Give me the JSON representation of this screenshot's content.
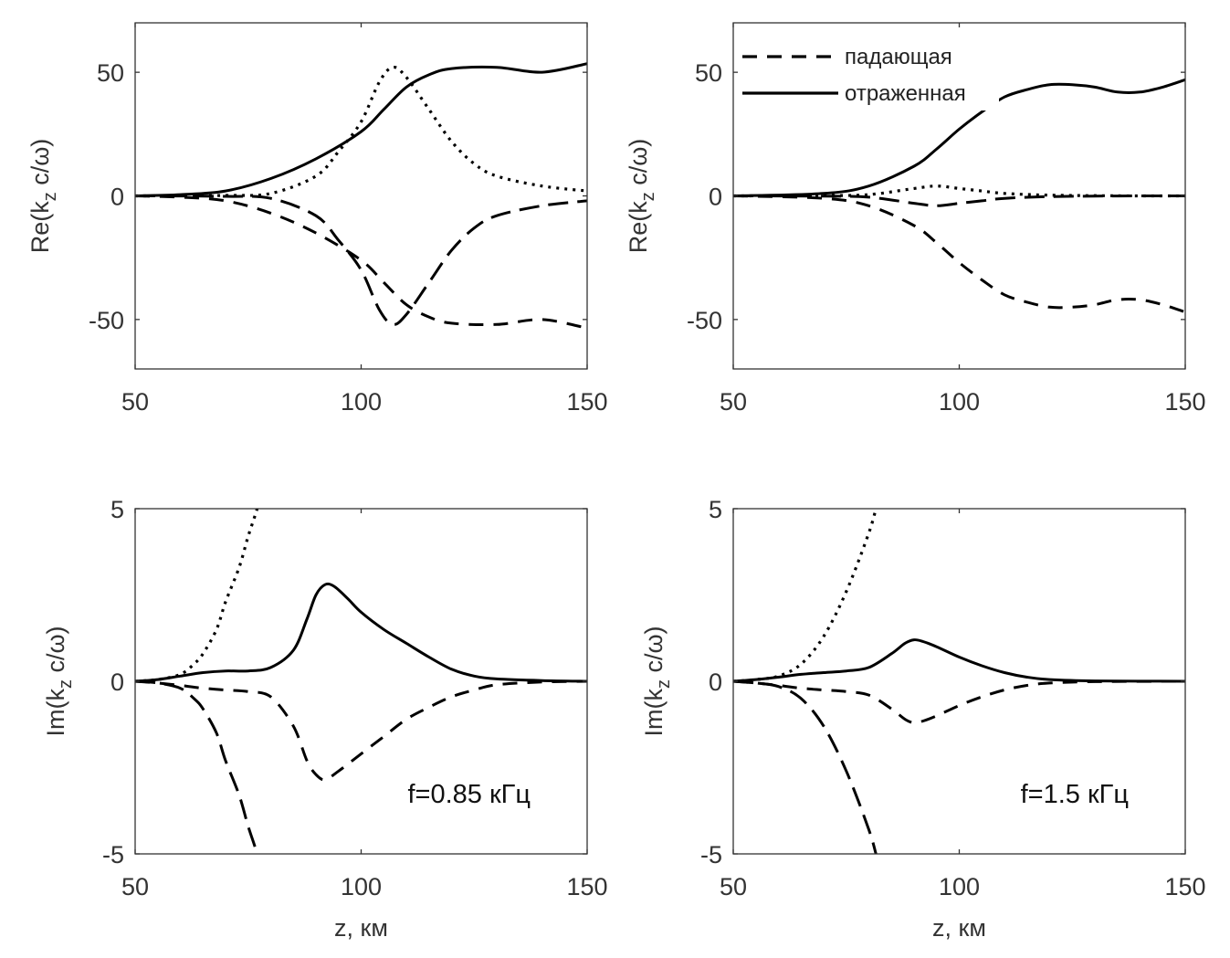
{
  "chart_data": [
    {
      "type": "line",
      "id": "re_085",
      "xlim": [
        50,
        150
      ],
      "ylim": [
        -70,
        70
      ],
      "xticks": [
        50,
        100,
        150
      ],
      "yticks": [
        -50,
        0,
        50
      ],
      "xlabel": "",
      "ylabel": {
        "pre": "Re(k",
        "sub": "z",
        "post": " c/ω)"
      },
      "annotation": "",
      "series": [
        {
          "name": "отраженная",
          "style": "solid",
          "x": [
            50,
            60,
            70,
            80,
            90,
            100,
            105,
            110,
            115,
            120,
            130,
            140,
            150
          ],
          "y": [
            0,
            0.5,
            2,
            7,
            15,
            26,
            35,
            44,
            49,
            51.5,
            52,
            50,
            53.5
          ]
        },
        {
          "name": "падающая",
          "style": "dashed",
          "x": [
            50,
            60,
            70,
            80,
            90,
            100,
            105,
            110,
            115,
            120,
            130,
            140,
            150
          ],
          "y": [
            0,
            -0.5,
            -2,
            -7,
            -15,
            -26,
            -35,
            -44,
            -49,
            -51.5,
            -52,
            -50,
            -53.5
          ]
        },
        {
          "name": "dotted",
          "style": "dotted",
          "x": [
            50,
            70,
            80,
            90,
            95,
            100,
            104,
            107,
            110,
            115,
            120,
            125,
            130,
            140,
            150
          ],
          "y": [
            0,
            0.2,
            1,
            8,
            18,
            30,
            46,
            52,
            48,
            35,
            22,
            13,
            8,
            4,
            2
          ]
        },
        {
          "name": "long-dash",
          "style": "longdash",
          "x": [
            50,
            70,
            80,
            90,
            95,
            100,
            104,
            107,
            110,
            115,
            120,
            125,
            130,
            140,
            150
          ],
          "y": [
            0,
            -0.2,
            -1,
            -8,
            -18,
            -30,
            -46,
            -52,
            -48,
            -35,
            -22,
            -13,
            -8,
            -4,
            -2
          ]
        }
      ]
    },
    {
      "type": "line",
      "id": "re_15",
      "xlim": [
        50,
        150
      ],
      "ylim": [
        -70,
        70
      ],
      "xticks": [
        50,
        100,
        150
      ],
      "yticks": [
        -50,
        0,
        50
      ],
      "xlabel": "",
      "ylabel": {
        "pre": "Re(k",
        "sub": "z",
        "post": " c/ω)"
      },
      "annotation": "",
      "legend": {
        "placement": "top-left",
        "entries": [
          {
            "label": "падающая",
            "style": "dashed"
          },
          {
            "label": "отраженная",
            "style": "solid"
          }
        ]
      },
      "series": [
        {
          "name": "отраженная",
          "style": "solid",
          "x": [
            50,
            70,
            80,
            90,
            95,
            100,
            105,
            110,
            115,
            120,
            125,
            130,
            135,
            140,
            145,
            150
          ],
          "y": [
            0,
            1,
            4,
            12,
            19,
            27,
            34,
            40,
            43,
            45,
            45,
            44,
            42,
            42,
            44,
            47
          ]
        },
        {
          "name": "падающая",
          "style": "dashed",
          "x": [
            50,
            70,
            80,
            90,
            95,
            100,
            105,
            110,
            115,
            120,
            125,
            130,
            135,
            140,
            145,
            150
          ],
          "y": [
            0,
            -1,
            -4,
            -12,
            -19,
            -27,
            -34,
            -40,
            -43,
            -45,
            -45,
            -44,
            -42,
            -42,
            -44,
            -47
          ]
        },
        {
          "name": "dotted",
          "style": "dotted",
          "x": [
            50,
            70,
            80,
            90,
            95,
            100,
            105,
            110,
            120,
            135,
            150
          ],
          "y": [
            0,
            0.1,
            0.5,
            3,
            4,
            3,
            2,
            1,
            0.3,
            0.05,
            0
          ]
        },
        {
          "name": "long-dash",
          "style": "longdash",
          "x": [
            50,
            70,
            80,
            90,
            95,
            100,
            105,
            110,
            120,
            135,
            150
          ],
          "y": [
            0,
            -0.1,
            -0.5,
            -3,
            -4,
            -3,
            -2,
            -1,
            -0.3,
            -0.05,
            0
          ]
        }
      ]
    },
    {
      "type": "line",
      "id": "im_085",
      "xlim": [
        50,
        150
      ],
      "ylim": [
        -5,
        5
      ],
      "xticks": [
        50,
        100,
        150
      ],
      "yticks": [
        -5,
        0,
        5
      ],
      "xlabel": "z, км",
      "ylabel": {
        "pre": "Im(k",
        "sub": "z",
        "post": " c/ω)"
      },
      "annotation": "f=0.85 кГц",
      "series": [
        {
          "name": "отраженная",
          "style": "solid",
          "x": [
            50,
            55,
            60,
            65,
            70,
            75,
            80,
            85,
            88,
            90,
            92,
            94,
            97,
            100,
            105,
            110,
            115,
            120,
            125,
            130,
            140,
            150
          ],
          "y": [
            0,
            0.05,
            0.15,
            0.25,
            0.3,
            0.3,
            0.4,
            0.9,
            1.8,
            2.5,
            2.8,
            2.75,
            2.4,
            2.0,
            1.5,
            1.1,
            0.7,
            0.35,
            0.15,
            0.07,
            0.02,
            0
          ]
        },
        {
          "name": "падающая",
          "style": "dashed",
          "x": [
            50,
            55,
            60,
            65,
            70,
            75,
            80,
            85,
            88,
            90,
            92,
            95,
            100,
            105,
            110,
            115,
            120,
            125,
            130,
            140,
            150
          ],
          "y": [
            0,
            -0.05,
            -0.12,
            -0.2,
            -0.25,
            -0.3,
            -0.45,
            -1.3,
            -2.3,
            -2.7,
            -2.85,
            -2.6,
            -2.1,
            -1.6,
            -1.1,
            -0.75,
            -0.45,
            -0.25,
            -0.1,
            -0.02,
            0
          ]
        },
        {
          "name": "dotted",
          "style": "dotted",
          "x": [
            50,
            55,
            60,
            63,
            65,
            68,
            70,
            73,
            75,
            77,
            79
          ],
          "y": [
            0,
            0.05,
            0.2,
            0.5,
            0.8,
            1.5,
            2.3,
            3.3,
            4.2,
            5,
            6
          ]
        },
        {
          "name": "long-dash",
          "style": "longdash",
          "x": [
            50,
            55,
            60,
            63,
            65,
            68,
            70,
            73,
            75,
            77,
            79
          ],
          "y": [
            0,
            -0.05,
            -0.2,
            -0.5,
            -0.8,
            -1.5,
            -2.3,
            -3.3,
            -4.2,
            -5,
            -6
          ]
        }
      ]
    },
    {
      "type": "line",
      "id": "im_15",
      "xlim": [
        50,
        150
      ],
      "ylim": [
        -5,
        5
      ],
      "xticks": [
        50,
        100,
        150
      ],
      "yticks": [
        -5,
        0,
        5
      ],
      "xlabel": "z, км",
      "ylabel": {
        "pre": "Im(k",
        "sub": "z",
        "post": " c/ω)"
      },
      "annotation": "f=1.5 кГц",
      "series": [
        {
          "name": "отраженная",
          "style": "solid",
          "x": [
            50,
            55,
            60,
            65,
            70,
            75,
            80,
            85,
            88,
            90,
            92,
            95,
            100,
            105,
            110,
            115,
            120,
            130,
            150
          ],
          "y": [
            0,
            0.05,
            0.12,
            0.2,
            0.25,
            0.3,
            0.4,
            0.8,
            1.1,
            1.2,
            1.15,
            1.0,
            0.7,
            0.45,
            0.25,
            0.12,
            0.05,
            0.01,
            0
          ]
        },
        {
          "name": "падающая",
          "style": "dashed",
          "x": [
            50,
            55,
            60,
            65,
            70,
            75,
            80,
            85,
            88,
            90,
            92,
            95,
            100,
            105,
            110,
            115,
            120,
            130,
            150
          ],
          "y": [
            0,
            -0.05,
            -0.12,
            -0.2,
            -0.25,
            -0.3,
            -0.4,
            -0.8,
            -1.1,
            -1.2,
            -1.15,
            -1.0,
            -0.7,
            -0.45,
            -0.25,
            -0.12,
            -0.05,
            -0.01,
            0
          ]
        },
        {
          "name": "dotted",
          "style": "dotted",
          "x": [
            50,
            55,
            60,
            65,
            70,
            75,
            80,
            82,
            84
          ],
          "y": [
            0,
            0.05,
            0.15,
            0.5,
            1.3,
            2.6,
            4.3,
            5.2,
            6
          ]
        },
        {
          "name": "long-dash",
          "style": "longdash",
          "x": [
            50,
            55,
            60,
            65,
            70,
            75,
            80,
            82,
            84
          ],
          "y": [
            0,
            -0.05,
            -0.15,
            -0.5,
            -1.3,
            -2.6,
            -4.3,
            -5.2,
            -6
          ]
        }
      ]
    }
  ]
}
